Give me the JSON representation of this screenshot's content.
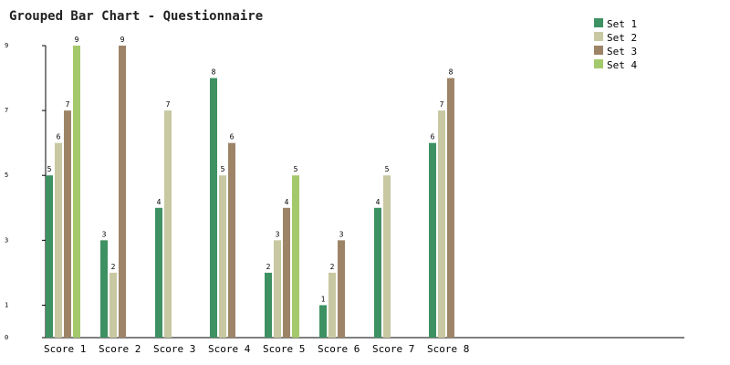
{
  "chart_data": {
    "type": "bar",
    "title": "Grouped Bar Chart - Questionnaire",
    "xlabel": "",
    "ylabel": "",
    "categories": [
      "Score 1",
      "Score 2",
      "Score 3",
      "Score 4",
      "Score 5",
      "Score 6",
      "Score 7",
      "Score 8"
    ],
    "yticks": [
      0,
      1,
      3,
      5,
      7,
      9
    ],
    "ylim": [
      0,
      9
    ],
    "legend_position": "top-right",
    "series": [
      {
        "name": "Set 1",
        "color": "#3d9162",
        "values": [
          5,
          3,
          4,
          8,
          2,
          1,
          4,
          6
        ]
      },
      {
        "name": "Set 2",
        "color": "#c8c8a2",
        "values": [
          6,
          2,
          7,
          5,
          3,
          2,
          5,
          7
        ]
      },
      {
        "name": "Set 3",
        "color": "#9e8467",
        "values": [
          7,
          9,
          null,
          6,
          4,
          3,
          null,
          8
        ]
      },
      {
        "name": "Set 4",
        "color": "#a4c96c",
        "values": [
          9,
          null,
          null,
          null,
          5,
          null,
          null,
          null
        ]
      }
    ]
  }
}
